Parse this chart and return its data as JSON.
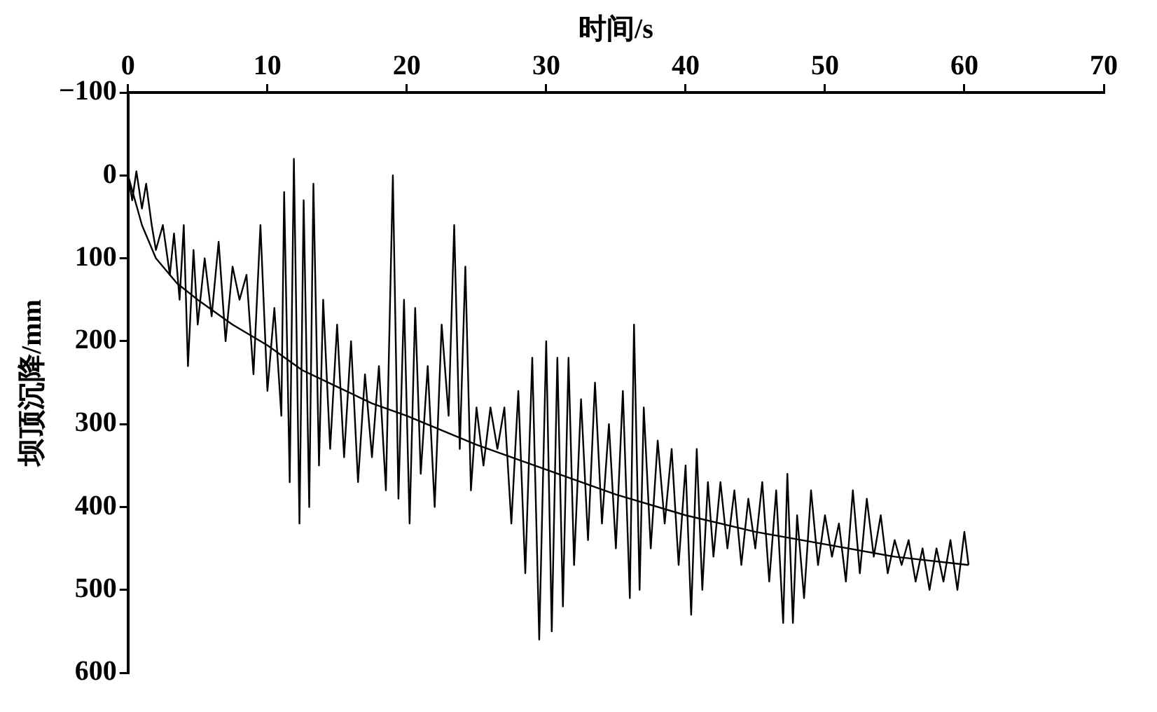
{
  "chart_data": {
    "type": "line",
    "xlabel": "时间/s",
    "ylabel": "坝顶沉降/mm",
    "xlim": [
      0,
      70
    ],
    "xticks": [
      0,
      10,
      20,
      30,
      40,
      50,
      60,
      70
    ],
    "ylim": [
      600,
      -100
    ],
    "yticks": [
      -100,
      0,
      100,
      200,
      300,
      400,
      500,
      600
    ],
    "grid": false,
    "legend": false,
    "marker": "none",
    "line_style": "solid",
    "series": [
      {
        "color": "#000000",
        "x": [
          0,
          0.3,
          0.6,
          1,
          1.3,
          1.7,
          2,
          2.5,
          3,
          3.3,
          3.7,
          4,
          4.3,
          4.7,
          5,
          5.5,
          6,
          6.5,
          7,
          7.5,
          8,
          8.5,
          9,
          9.5,
          10,
          10.5,
          11,
          11.2,
          11.6,
          11.9,
          12.3,
          12.6,
          13,
          13.3,
          13.7,
          14,
          14.5,
          15,
          15.5,
          16,
          16.5,
          17,
          17.5,
          18,
          18.5,
          19,
          19.4,
          19.8,
          20.2,
          20.6,
          21,
          21.5,
          22,
          22.5,
          23,
          23.4,
          23.8,
          24.2,
          24.6,
          25,
          25.5,
          26,
          26.5,
          27,
          27.5,
          28,
          28.5,
          29,
          29.5,
          30,
          30.4,
          30.8,
          31.2,
          31.6,
          32,
          32.5,
          33,
          33.5,
          34,
          34.5,
          35,
          35.5,
          36,
          36.3,
          36.7,
          37,
          37.5,
          38,
          38.5,
          39,
          39.5,
          40,
          40.4,
          40.8,
          41.2,
          41.6,
          42,
          42.5,
          43,
          43.5,
          44,
          44.5,
          45,
          45.5,
          46,
          46.5,
          47,
          47.3,
          47.7,
          48,
          48.5,
          49,
          49.5,
          50,
          50.5,
          51,
          51.5,
          52,
          52.5,
          53,
          53.5,
          54,
          54.5,
          55,
          55.5,
          56,
          56.5,
          57,
          57.5,
          58,
          58.5,
          59,
          59.5,
          60,
          60.3
        ],
        "values": [
          0,
          30,
          -5,
          40,
          10,
          60,
          90,
          60,
          120,
          70,
          150,
          60,
          230,
          90,
          180,
          100,
          170,
          80,
          200,
          110,
          150,
          120,
          240,
          60,
          260,
          160,
          290,
          20,
          370,
          -20,
          420,
          30,
          400,
          10,
          350,
          150,
          330,
          180,
          340,
          200,
          370,
          240,
          340,
          230,
          380,
          0,
          390,
          150,
          420,
          160,
          360,
          230,
          400,
          180,
          290,
          60,
          330,
          110,
          380,
          280,
          350,
          280,
          330,
          280,
          420,
          260,
          480,
          220,
          560,
          200,
          550,
          220,
          520,
          220,
          470,
          270,
          440,
          250,
          420,
          300,
          450,
          260,
          510,
          180,
          500,
          280,
          450,
          320,
          420,
          330,
          470,
          350,
          530,
          330,
          500,
          370,
          460,
          370,
          450,
          380,
          470,
          390,
          450,
          370,
          490,
          380,
          540,
          360,
          540,
          410,
          510,
          380,
          470,
          410,
          460,
          420,
          490,
          380,
          480,
          390,
          460,
          410,
          480,
          440,
          470,
          440,
          490,
          450,
          500,
          450,
          490,
          440,
          500,
          430,
          470
        ]
      },
      {
        "color": "#000000",
        "x": [
          0,
          1,
          2,
          3.5,
          5,
          7.5,
          10,
          12.5,
          15,
          17.5,
          20,
          25,
          30,
          35,
          40,
          45,
          50,
          55,
          60.3
        ],
        "values": [
          0,
          60,
          100,
          130,
          150,
          180,
          205,
          235,
          255,
          275,
          290,
          325,
          355,
          385,
          410,
          430,
          445,
          460,
          470
        ]
      }
    ]
  }
}
